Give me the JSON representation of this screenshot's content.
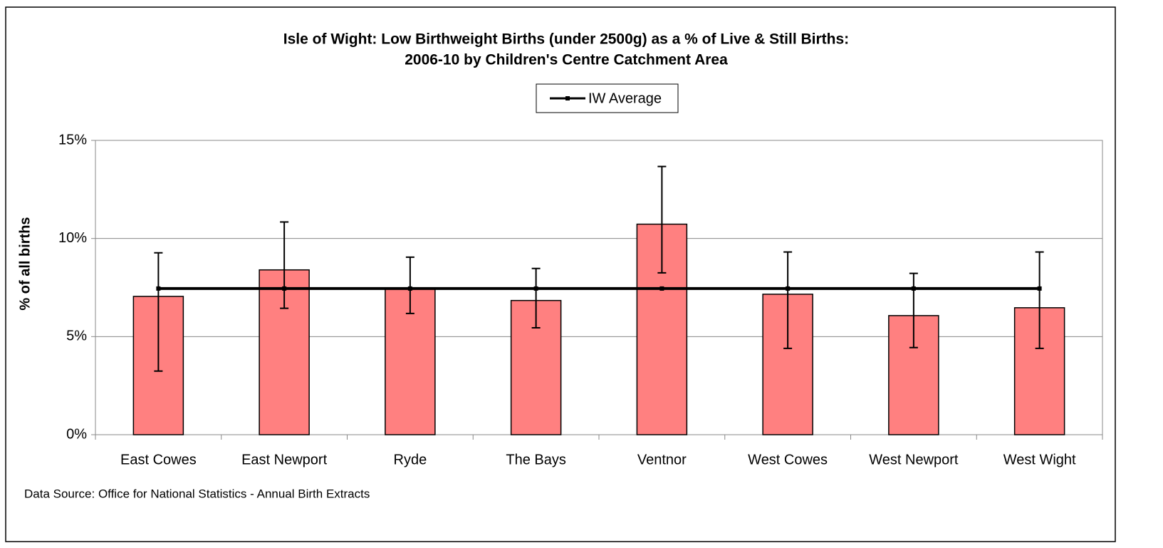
{
  "chart_data": {
    "type": "bar",
    "title": [
      "Isle of Wight: Low Birthweight Births (under 2500g) as a % of Live & Still Births:",
      "2006-10 by Children's Centre Catchment Area"
    ],
    "ylabel": "% of all births",
    "source": "Data Source: Office for National Statistics - Annual Birth Extracts",
    "categories": [
      "East Cowes",
      "East Newport",
      "Ryde",
      "The Bays",
      "Ventnor",
      "West Cowes",
      "West Newport",
      "West Wight"
    ],
    "series": [
      {
        "color": "#ff8080",
        "values": [
          7.05,
          8.4,
          7.45,
          6.84,
          10.73,
          7.16,
          6.07,
          6.47
        ],
        "ci_lower": [
          3.24,
          6.44,
          6.18,
          5.45,
          8.25,
          4.4,
          4.44,
          4.4
        ],
        "ci_upper": [
          9.27,
          10.84,
          9.05,
          8.47,
          13.67,
          9.31,
          8.22,
          9.31
        ]
      },
      {
        "type": "line",
        "name": "IW Average",
        "color": "#000000",
        "values": [
          7.45,
          7.45,
          7.45,
          7.45,
          7.45,
          7.45,
          7.45,
          7.45
        ]
      }
    ],
    "ylim": [
      0,
      15
    ],
    "yticks": [
      {
        "value": 0,
        "label": "0%"
      },
      {
        "value": 5,
        "label": "5%"
      },
      {
        "value": 10,
        "label": "10%"
      },
      {
        "value": 15,
        "label": "15%"
      }
    ],
    "grid": true,
    "legend": "top"
  }
}
